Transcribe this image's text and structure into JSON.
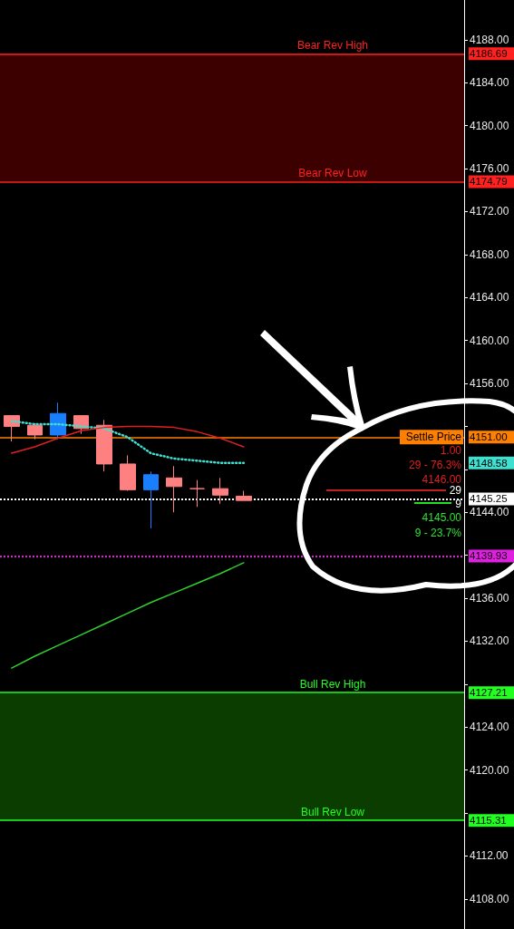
{
  "chart_data": {
    "type": "candlestick",
    "categories": [
      null,
      null,
      null,
      null,
      null,
      null,
      null,
      null,
      null,
      null,
      null,
      null,
      null,
      null,
      null,
      null,
      null,
      null,
      null,
      null
    ],
    "ohlc": [
      [
        4153.0,
        4153.0,
        4150.6,
        4152.0
      ],
      [
        4152.1,
        4152.3,
        4150.8,
        4151.2
      ],
      [
        4151.2,
        4154.2,
        4150.8,
        4153.2
      ],
      [
        4153.0,
        4153.0,
        4151.3,
        4151.8
      ],
      [
        4152.1,
        4152.6,
        4147.8,
        4148.5
      ],
      [
        4148.5,
        4149.3,
        4146.0,
        4146.1
      ],
      [
        4146.1,
        4147.8,
        4142.5,
        4147.5
      ],
      [
        4147.2,
        4148.3,
        4144.0,
        4146.4
      ],
      [
        4146.2,
        4147.0,
        4144.5,
        4146.2
      ],
      [
        4146.2,
        4147.2,
        4144.8,
        4145.6
      ],
      [
        4145.5,
        4146.0,
        4145.1,
        4145.1
      ],
      null,
      null,
      null,
      null,
      null,
      null,
      null,
      null,
      null
    ],
    "colors": [
      "#ff8080",
      "#ff8080",
      "#1a7fff",
      "#ff8080",
      "#ff8080",
      "#ff8080",
      "#1a7fff",
      "#ff8080",
      "#ff8080",
      "#ff8080",
      "#ff8080",
      null,
      null,
      null,
      null,
      null,
      null,
      null,
      null,
      null
    ],
    "series": [
      {
        "type": "line",
        "color": "#40e0d0",
        "line_style": "dotted",
        "values": [
          4152.5,
          4152.2,
          4152.2,
          4152.0,
          4151.8,
          4151.0,
          4149.5,
          4149.0,
          4148.8,
          4148.6,
          4148.6,
          null,
          null,
          null,
          null,
          null,
          null,
          null,
          null,
          null
        ]
      },
      {
        "type": "line",
        "color": "#e02020",
        "line_style": "solid",
        "values": [
          4149.5,
          4150.1,
          4150.9,
          4151.6,
          4151.9,
          4152.0,
          4152.0,
          4151.9,
          4151.5,
          4150.9,
          4150.1,
          null,
          null,
          null,
          null,
          null,
          null,
          null,
          null,
          null
        ]
      },
      {
        "type": "line",
        "color": "#30d030",
        "line_style": "solid",
        "values": [
          4129.5,
          4130.6,
          4131.6,
          4132.6,
          4133.6,
          4134.6,
          4135.6,
          4136.5,
          4137.4,
          4138.3,
          4139.3,
          null,
          null,
          null,
          null,
          null,
          null,
          null,
          null,
          null
        ]
      }
    ],
    "ylim": [
      4105.2,
      4191.7
    ],
    "yticks": [
      {
        "value": 4108,
        "label": "4108.00"
      },
      {
        "value": 4112,
        "label": "4112.00"
      },
      {
        "value": 4116,
        "label": null
      },
      {
        "value": 4120,
        "label": "4120.00"
      },
      {
        "value": 4124,
        "label": "4124.00"
      },
      {
        "value": 4128,
        "label": null
      },
      {
        "value": 4132,
        "label": "4132.00"
      },
      {
        "value": 4136,
        "label": "4136.00"
      },
      {
        "value": 4140,
        "label": null
      },
      {
        "value": 4144,
        "label": "4144.00"
      },
      {
        "value": 4148,
        "label": null
      },
      {
        "value": 4152,
        "label": null
      },
      {
        "value": 4156,
        "label": "4156.00"
      },
      {
        "value": 4160,
        "label": "4160.00"
      },
      {
        "value": 4164,
        "label": "4164.00"
      },
      {
        "value": 4168,
        "label": "4168.00"
      },
      {
        "value": 4172,
        "label": "4172.00"
      },
      {
        "value": 4176,
        "label": "4176.00"
      },
      {
        "value": 4180,
        "label": "4180.00"
      },
      {
        "value": 4184,
        "label": "4184.00"
      },
      {
        "value": 4188,
        "label": "4188.00"
      }
    ],
    "tick_labels": "y",
    "bands": [
      {
        "axis": "y",
        "from": 4174.79,
        "to": 4186.69,
        "color": "#3d0000"
      },
      {
        "axis": "y",
        "from": 4115.31,
        "to": 4127.21,
        "color": "#0b3d00"
      }
    ],
    "ref_lines": [
      {
        "axis": "y",
        "value": 4186.69,
        "label": "Bear Rev High",
        "color": "#ff2020",
        "line_style": "solid"
      },
      {
        "axis": "y",
        "value": 4174.79,
        "label": "Bear Rev Low",
        "color": "#ff2020",
        "line_style": "solid"
      },
      {
        "axis": "y",
        "value": 4151.0,
        "label": "Settle Price",
        "color": "#ff8000",
        "line_style": "solid"
      },
      {
        "axis": "y",
        "value": 4145.25,
        "color": "#ffffff",
        "line_style": "dotted"
      },
      {
        "axis": "y",
        "value": 4139.93,
        "color": "#e020e0",
        "line_style": "dotted"
      },
      {
        "axis": "y",
        "value": 4127.21,
        "label": "Bull Rev High",
        "color": "#20ff20",
        "line_style": "solid"
      },
      {
        "axis": "y",
        "value": 4115.31,
        "label": "Bull Rev Low",
        "color": "#20ff20",
        "line_style": "solid"
      }
    ],
    "annotations": [
      "4186.69",
      "4174.79",
      "4151.00",
      "4145.25",
      "4139.93",
      "4127.21",
      "4115.31",
      "4148.58",
      "1.00",
      "29 - 76.3%",
      "4146.00",
      "29",
      "9",
      "4145.00",
      "9 - 23.7%"
    ]
  }
}
